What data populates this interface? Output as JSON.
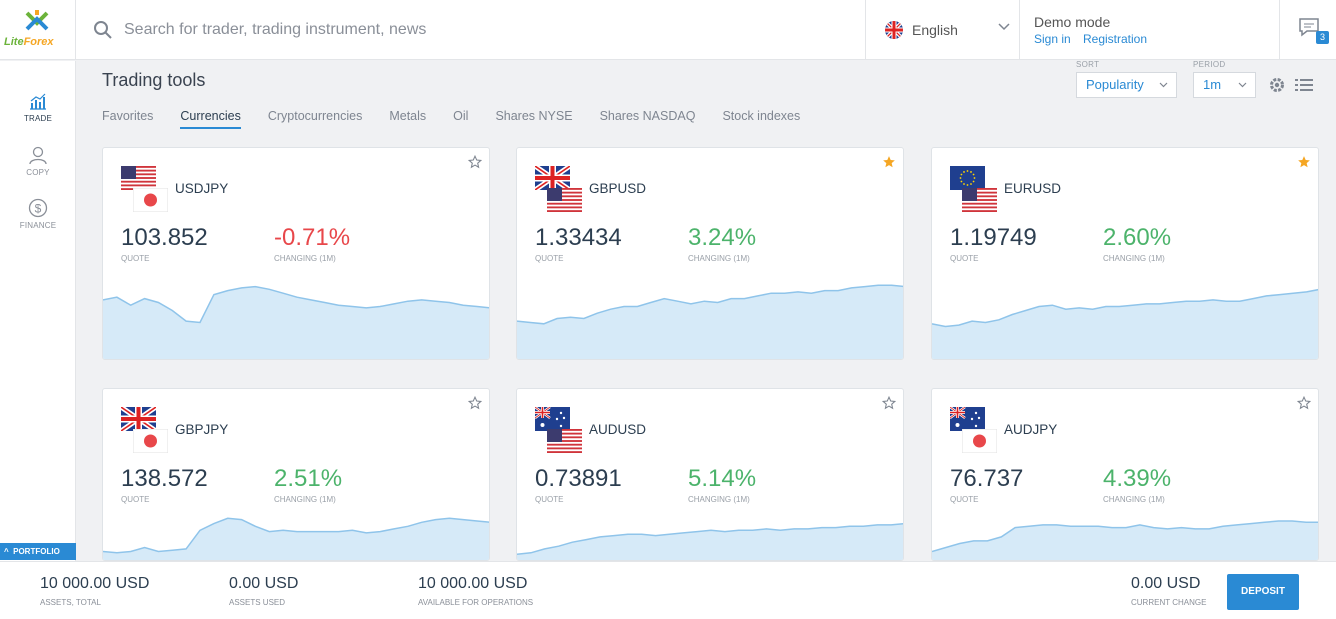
{
  "brand": {
    "name_part1": "Lite",
    "name_part2": "Forex"
  },
  "search": {
    "placeholder": "Search for trader, trading instrument, news"
  },
  "language": {
    "label": "English"
  },
  "account": {
    "mode": "Demo mode",
    "signin": "Sign in",
    "register": "Registration"
  },
  "messages": {
    "count": "3"
  },
  "sidebar": {
    "items": [
      {
        "label": "TRADE",
        "icon": "chart-icon"
      },
      {
        "label": "COPY",
        "icon": "person-icon"
      },
      {
        "label": "FINANCE",
        "icon": "dollar-icon"
      }
    ],
    "portfolio": "PORTFOLIO"
  },
  "page": {
    "title": "Trading tools"
  },
  "tabs": [
    "Favorites",
    "Currencies",
    "Cryptocurrencies",
    "Metals",
    "Oil",
    "Shares NYSE",
    "Shares NASDAQ",
    "Stock indexes"
  ],
  "controls": {
    "sort_label": "SORT",
    "sort_value": "Popularity",
    "period_label": "PERIOD",
    "period_value": "1m"
  },
  "card_labels": {
    "quote": "QUOTE",
    "changing": "CHANGING (1M)"
  },
  "cards": [
    {
      "pair": "USDJPY",
      "quote": "103.852",
      "change": "-0.71%",
      "favorite": false,
      "flags": [
        "us",
        "jp"
      ],
      "series": [
        46,
        48,
        42,
        47,
        44,
        38,
        30,
        29,
        50,
        53,
        55,
        56,
        54,
        51,
        48,
        46,
        44,
        42,
        41,
        40,
        41,
        43,
        45,
        46,
        45,
        44,
        42,
        41,
        40
      ]
    },
    {
      "pair": "GBPUSD",
      "quote": "1.33434",
      "change": "3.24%",
      "favorite": true,
      "flags": [
        "gb",
        "us"
      ],
      "series": [
        30,
        29,
        28,
        32,
        33,
        32,
        36,
        39,
        41,
        41,
        44,
        47,
        45,
        43,
        45,
        44,
        47,
        47,
        49,
        51,
        51,
        52,
        51,
        53,
        53,
        55,
        56,
        57,
        57,
        56
      ]
    },
    {
      "pair": "EURUSD",
      "quote": "1.19749",
      "change": "2.60%",
      "favorite": true,
      "flags": [
        "eu",
        "us"
      ],
      "series": [
        28,
        26,
        27,
        30,
        29,
        31,
        35,
        38,
        41,
        42,
        39,
        40,
        39,
        41,
        41,
        42,
        43,
        43,
        44,
        45,
        45,
        46,
        45,
        45,
        47,
        49,
        50,
        51,
        52,
        54
      ]
    },
    {
      "pair": "GBPJPY",
      "quote": "138.572",
      "change": "2.51%",
      "favorite": false,
      "flags": [
        "gb",
        "jp"
      ],
      "series": [
        38,
        37,
        38,
        41,
        38,
        39,
        40,
        54,
        59,
        63,
        62,
        57,
        53,
        54,
        53,
        53,
        53,
        53,
        54,
        52,
        53,
        55,
        57,
        60,
        62,
        63,
        62,
        61,
        60
      ]
    },
    {
      "pair": "AUDUSD",
      "quote": "0.73891",
      "change": "5.14%",
      "favorite": false,
      "flags": [
        "au",
        "us"
      ],
      "series": [
        36,
        37,
        40,
        42,
        45,
        47,
        49,
        50,
        51,
        51,
        50,
        51,
        52,
        53,
        54,
        53,
        54,
        54,
        55,
        54,
        55,
        55,
        56,
        56,
        57,
        57,
        58,
        58,
        59
      ]
    },
    {
      "pair": "AUDJPY",
      "quote": "76.737",
      "change": "4.39%",
      "favorite": false,
      "flags": [
        "au",
        "jp"
      ],
      "series": [
        38,
        41,
        44,
        46,
        46,
        49,
        56,
        57,
        58,
        58,
        57,
        57,
        57,
        56,
        56,
        58,
        56,
        55,
        56,
        55,
        55,
        57,
        58,
        59,
        60,
        61,
        61,
        60,
        60
      ]
    }
  ],
  "bottom": {
    "assets_total": "10 000.00 USD",
    "assets_total_label": "ASSETS, TOTAL",
    "assets_used": "0.00 USD",
    "assets_used_label": "ASSETS USED",
    "available": "10 000.00 USD",
    "available_label": "AVAILABLE FOR OPERATIONS",
    "current_change": "0.00 USD",
    "current_change_label": "CURRENT CHANGE",
    "deposit": "DEPOSIT"
  },
  "colors": {
    "accent": "#2a8ad4",
    "positive": "#4cb36b",
    "negative": "#e8474a",
    "favorite": "#f5a623",
    "spark_fill": "#d6eaf8",
    "spark_line": "#8fc4ea"
  }
}
